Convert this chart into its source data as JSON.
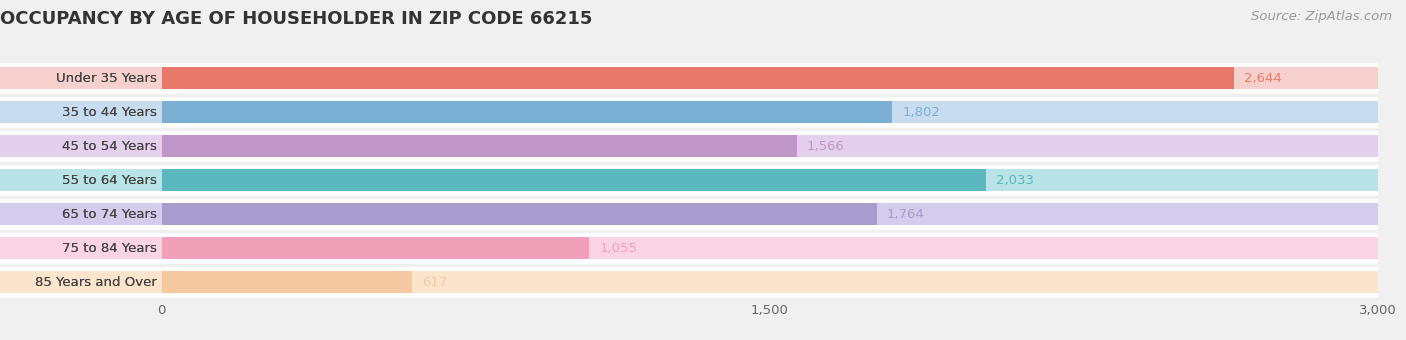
{
  "title": "OCCUPANCY BY AGE OF HOUSEHOLDER IN ZIP CODE 66215",
  "source": "Source: ZipAtlas.com",
  "categories": [
    "Under 35 Years",
    "35 to 44 Years",
    "45 to 54 Years",
    "55 to 64 Years",
    "65 to 74 Years",
    "75 to 84 Years",
    "85 Years and Over"
  ],
  "values": [
    2644,
    1802,
    1566,
    2033,
    1764,
    1055,
    617
  ],
  "bar_colors": [
    "#E8796A",
    "#7BAFD4",
    "#C097C8",
    "#5BB8BE",
    "#A89CCC",
    "#F0A0B8",
    "#F5C8A0"
  ],
  "bar_bg_colors": [
    "#F5D0CC",
    "#C8DCF0",
    "#E4D0EC",
    "#B8E4E8",
    "#D4CCEC",
    "#FAD4E4",
    "#FAE4CC"
  ],
  "row_bg_color": "#ffffff",
  "xlim": [
    0,
    3000
  ],
  "xticks": [
    0,
    1500,
    3000
  ],
  "title_fontsize": 13,
  "label_fontsize": 9.5,
  "value_fontsize": 9.5,
  "source_fontsize": 9.5,
  "figure_bg_color": "#f0f0f0",
  "separator_color": "#e0e0e0"
}
